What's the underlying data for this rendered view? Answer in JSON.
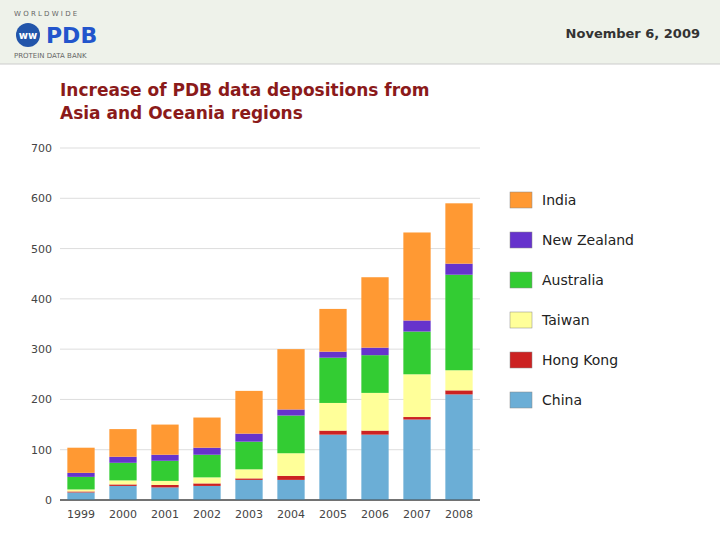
{
  "chart_data": {
    "type": "bar",
    "stacked": true,
    "title": "Increase of PDB data depositions from",
    "subtitle": "Asia and Oceania regions",
    "annotations": [
      "November 6, 2009",
      "W O R L D W I D E",
      "ww",
      "PDB",
      "PROTEIN DATA BANK"
    ],
    "categories": [
      "1999",
      "2000",
      "2001",
      "2002",
      "2003",
      "2004",
      "2005",
      "2006",
      "2007",
      "2008"
    ],
    "series": [
      {
        "name": "China",
        "color": "#6baed6",
        "values": [
          15,
          28,
          25,
          28,
          40,
          40,
          130,
          130,
          160,
          210
        ]
      },
      {
        "name": "Hong Kong",
        "color": "#cc2222",
        "values": [
          2,
          3,
          5,
          5,
          3,
          8,
          8,
          8,
          5,
          8
        ]
      },
      {
        "name": "Taiwan",
        "color": "#ffff99",
        "values": [
          4,
          8,
          8,
          12,
          18,
          45,
          55,
          75,
          85,
          40
        ]
      },
      {
        "name": "Australia",
        "color": "#33cc33",
        "values": [
          25,
          35,
          40,
          45,
          55,
          75,
          90,
          75,
          85,
          190
        ]
      },
      {
        "name": "New Zealand",
        "color": "#6633cc",
        "values": [
          8,
          12,
          12,
          14,
          16,
          12,
          12,
          15,
          22,
          22
        ]
      },
      {
        "name": "India",
        "color": "#ff9933",
        "values": [
          50,
          55,
          60,
          60,
          85,
          120,
          85,
          140,
          175,
          120
        ]
      }
    ],
    "ylim": [
      0,
      700
    ],
    "yticks": [
      0,
      100,
      200,
      300,
      400,
      500,
      600,
      700
    ],
    "grid": true,
    "legend": "right"
  }
}
